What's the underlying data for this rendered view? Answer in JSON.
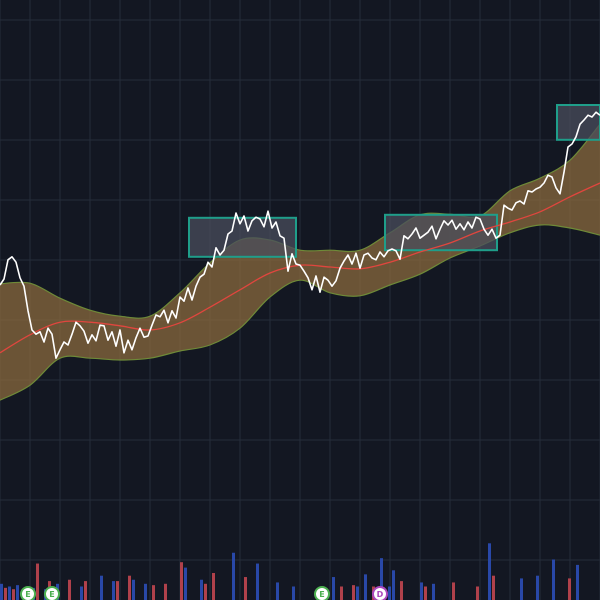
{
  "chart_data": {
    "type": "line",
    "title": "",
    "xlabel": "",
    "ylabel": "",
    "grid": true,
    "ylim": [
      0,
      100
    ],
    "volume_ylim": [
      0,
      100
    ],
    "colors": {
      "background": "#131722",
      "grid": "#262c3a",
      "price_line": "#ffffff",
      "basis_line": "#e0463e",
      "band_fill": "#8a6a3e",
      "band_edge": "#6e8a38",
      "box_stroke": "#1f9e8a",
      "box_fill": "#4a4e5c",
      "volume_up": "#2948a8",
      "volume_down": "#b0414b",
      "marker_e_ring": "#4caf50",
      "marker_d_ring": "#ab47bc"
    },
    "series": [
      {
        "role": "price",
        "x": [
          0,
          4,
          8,
          12,
          16,
          20,
          24,
          28,
          32,
          36,
          40,
          44,
          48,
          52,
          56,
          60,
          64,
          68,
          72,
          76,
          80,
          84,
          88,
          92,
          96,
          100,
          104,
          108,
          112,
          116,
          120,
          124,
          128,
          132,
          136,
          140,
          144,
          148,
          152,
          156,
          160,
          164,
          168,
          172,
          176,
          180,
          184,
          188,
          192,
          196,
          200,
          204,
          208,
          212,
          216,
          220,
          224,
          228,
          232,
          236,
          240,
          244,
          248,
          252,
          256,
          260,
          264,
          268,
          272,
          276,
          280,
          284,
          288,
          292,
          296,
          300,
          304,
          308,
          312,
          316,
          320,
          324,
          328,
          332,
          336,
          340,
          344,
          348,
          352,
          356,
          360,
          364,
          368,
          372,
          376,
          380,
          384,
          388,
          392,
          396,
          400,
          404,
          408,
          412,
          416,
          420,
          424,
          428,
          432,
          436,
          440,
          444,
          448,
          452,
          456,
          460,
          464,
          468,
          472,
          476,
          480,
          484,
          488,
          492,
          496,
          500,
          504,
          508,
          512,
          516,
          520,
          524,
          528,
          532,
          536,
          540,
          544,
          548,
          552,
          556,
          560,
          564,
          568,
          572,
          576,
          580,
          584,
          588,
          592,
          596,
          600
        ],
        "values": [
          52.5,
          53.5,
          56.7,
          57.2,
          56.3,
          53.7,
          52.3,
          48.2,
          45.0,
          44.3,
          44.7,
          43.0,
          45.3,
          44.3,
          40.3,
          41.7,
          43.0,
          42.5,
          44.3,
          46.3,
          45.7,
          44.8,
          42.8,
          44.2,
          43.2,
          45.8,
          45.7,
          43.3,
          44.7,
          42.3,
          45.0,
          41.2,
          43.3,
          41.7,
          43.7,
          45.3,
          43.8,
          44.0,
          45.8,
          47.5,
          47.2,
          48.3,
          46.2,
          48.2,
          47.0,
          50.5,
          49.8,
          52.0,
          50.0,
          52.3,
          53.8,
          54.3,
          56.3,
          55.5,
          58.7,
          57.5,
          58.3,
          61.0,
          61.5,
          64.5,
          62.7,
          64.0,
          61.5,
          63.2,
          63.8,
          63.5,
          62.2,
          64.8,
          62.0,
          63.0,
          60.7,
          60.3,
          54.8,
          57.7,
          56.0,
          55.8,
          54.8,
          53.7,
          51.7,
          54.0,
          51.3,
          53.8,
          53.3,
          52.3,
          53.2,
          55.3,
          56.5,
          57.5,
          56.0,
          57.8,
          55.3,
          57.5,
          57.8,
          57.0,
          56.7,
          58.0,
          57.2,
          58.2,
          58.5,
          58.2,
          56.8,
          60.7,
          60.2,
          61.0,
          62.0,
          60.3,
          60.8,
          61.3,
          62.3,
          60.2,
          61.8,
          63.2,
          62.5,
          63.3,
          61.8,
          62.7,
          61.7,
          63.0,
          62.0,
          63.8,
          63.5,
          61.8,
          60.8,
          61.8,
          60.3,
          60.8,
          65.8,
          65.3,
          65.0,
          66.2,
          66.5,
          66.0,
          68.2,
          68.0,
          68.5,
          68.8,
          69.5,
          70.8,
          70.5,
          68.7,
          67.7,
          71.3,
          75.5,
          76.0,
          77.2,
          79.3,
          80.0,
          80.8,
          80.5,
          81.3,
          80.8
        ]
      },
      {
        "role": "basis",
        "x": [
          0,
          30,
          60,
          90,
          120,
          150,
          180,
          210,
          240,
          270,
          300,
          330,
          360,
          390,
          420,
          450,
          480,
          510,
          540,
          570,
          600
        ],
        "values": [
          41.2,
          44.2,
          46.3,
          46.3,
          45.7,
          45.0,
          46.2,
          48.8,
          51.7,
          54.5,
          55.8,
          55.5,
          55.2,
          56.3,
          58.0,
          59.5,
          61.5,
          63.0,
          64.7,
          67.2,
          69.5
        ]
      },
      {
        "role": "upper-band",
        "x": [
          0,
          30,
          60,
          90,
          120,
          150,
          180,
          210,
          240,
          270,
          300,
          330,
          360,
          390,
          420,
          450,
          480,
          510,
          540,
          570,
          600
        ],
        "values": [
          52.7,
          52.8,
          50.3,
          48.3,
          47.3,
          47.3,
          51.2,
          56.2,
          60.0,
          60.0,
          58.3,
          58.3,
          58.3,
          61.2,
          64.2,
          64.3,
          64.0,
          68.2,
          70.3,
          73.3,
          79.3
        ]
      },
      {
        "role": "lower-band",
        "x": [
          0,
          30,
          60,
          90,
          120,
          150,
          180,
          210,
          240,
          270,
          300,
          330,
          360,
          390,
          420,
          450,
          480,
          510,
          540,
          570,
          600
        ],
        "values": [
          33.3,
          35.8,
          40.3,
          40.3,
          40.0,
          40.3,
          41.5,
          42.5,
          45.3,
          50.5,
          53.3,
          51.2,
          50.7,
          52.5,
          54.3,
          57.0,
          59.0,
          61.2,
          62.5,
          62.0,
          60.8
        ]
      }
    ],
    "boxes": [
      {
        "x": [
          189,
          296
        ],
        "y": [
          57.2,
          63.7
        ]
      },
      {
        "x": [
          385,
          497
        ],
        "y": [
          58.3,
          64.2
        ]
      },
      {
        "x": [
          557,
          600
        ],
        "y": [
          76.7,
          82.5
        ]
      }
    ],
    "volume": {
      "bar_x_step": 4,
      "up": [
        12,
        0,
        10,
        0,
        11,
        0,
        0,
        0,
        9,
        0,
        0,
        8,
        0,
        0,
        12,
        0,
        0,
        0,
        0,
        0,
        10,
        0,
        0,
        0,
        0,
        18,
        0,
        0,
        14,
        0,
        0,
        0,
        0,
        15,
        0,
        0,
        12,
        0,
        0,
        0,
        0,
        0,
        0,
        0,
        0,
        0,
        24,
        0,
        0,
        0,
        15,
        0,
        0,
        0,
        0,
        0,
        0,
        0,
        35,
        0,
        0,
        14,
        0,
        0,
        27,
        0,
        0,
        0,
        0,
        13,
        0,
        0,
        0,
        10,
        0,
        0,
        0,
        0,
        0,
        0,
        8,
        0,
        0,
        17,
        0,
        0,
        0,
        0,
        0,
        10,
        0,
        19,
        0,
        0,
        0,
        31,
        0,
        10,
        22,
        0,
        0,
        0,
        0,
        0,
        0,
        13,
        0,
        0,
        12,
        0,
        0,
        0,
        0,
        0,
        0,
        0,
        0,
        0,
        0,
        0,
        0,
        0,
        42,
        0,
        0,
        0,
        0,
        0,
        0,
        0,
        16,
        0,
        0,
        0,
        18,
        0,
        0,
        0,
        30,
        0,
        0,
        0,
        0,
        0,
        26,
        0,
        0,
        0,
        0,
        0
      ],
      "down": [
        0,
        9,
        0,
        8,
        0,
        0,
        0,
        0,
        0,
        27,
        0,
        0,
        14,
        0,
        0,
        0,
        0,
        15,
        0,
        0,
        0,
        14,
        0,
        0,
        0,
        0,
        0,
        0,
        0,
        14,
        0,
        0,
        18,
        0,
        0,
        0,
        0,
        0,
        11,
        0,
        0,
        12,
        0,
        0,
        0,
        28,
        0,
        0,
        0,
        0,
        0,
        12,
        0,
        20,
        0,
        0,
        0,
        0,
        0,
        0,
        0,
        17,
        0,
        0,
        0,
        0,
        0,
        0,
        0,
        0,
        0,
        0,
        0,
        0,
        0,
        0,
        0,
        0,
        0,
        0,
        0,
        0,
        0,
        0,
        0,
        10,
        0,
        0,
        11,
        0,
        0,
        0,
        0,
        10,
        0,
        0,
        0,
        0,
        0,
        0,
        14,
        0,
        0,
        0,
        0,
        0,
        10,
        0,
        0,
        0,
        0,
        0,
        0,
        13,
        0,
        0,
        0,
        0,
        0,
        10,
        0,
        0,
        0,
        18,
        0,
        0,
        0,
        0,
        0,
        0,
        0,
        0,
        0,
        0,
        0,
        0,
        0,
        0,
        0,
        0,
        0,
        0,
        16,
        0,
        0,
        0,
        0,
        0,
        0,
        0,
        0
      ]
    },
    "markers": [
      {
        "x": 28,
        "label": "E",
        "kind": "earnings"
      },
      {
        "x": 52,
        "label": "E",
        "kind": "earnings"
      },
      {
        "x": 322,
        "label": "E",
        "kind": "earnings"
      },
      {
        "x": 380,
        "label": "D",
        "kind": "dividend"
      }
    ]
  }
}
